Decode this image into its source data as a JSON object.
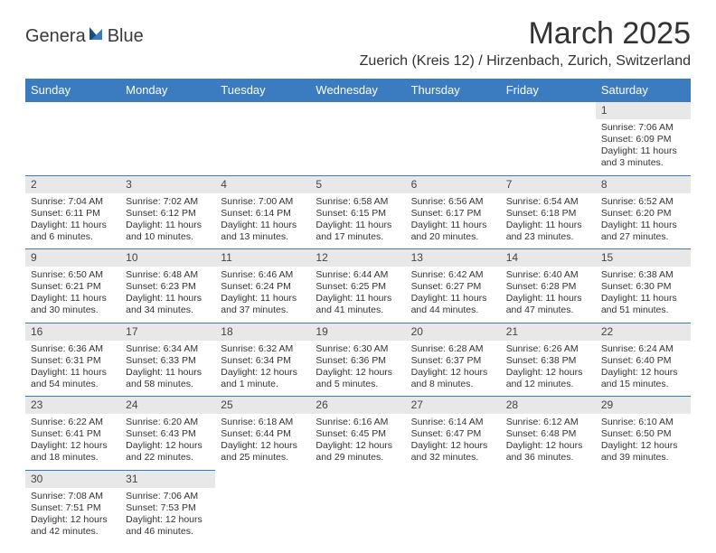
{
  "logo": {
    "text1": "Genera",
    "text2": "Blue",
    "color_dark": "#1a4e7a",
    "color_light": "#3b7bbf"
  },
  "title": "March 2025",
  "location": "Zuerich (Kreis 12) / Hirzenbach, Zurich, Switzerland",
  "header_bg": "#3b7bbf",
  "header_text_color": "#ffffff",
  "daynum_bg": "#e8e8e8",
  "border_color": "#3b7bbf",
  "weekdays": [
    "Sunday",
    "Monday",
    "Tuesday",
    "Wednesday",
    "Thursday",
    "Friday",
    "Saturday"
  ],
  "weeks": [
    [
      null,
      null,
      null,
      null,
      null,
      null,
      {
        "n": "1",
        "sr": "Sunrise: 7:06 AM",
        "ss": "Sunset: 6:09 PM",
        "dl": "Daylight: 11 hours and 3 minutes."
      }
    ],
    [
      {
        "n": "2",
        "sr": "Sunrise: 7:04 AM",
        "ss": "Sunset: 6:11 PM",
        "dl": "Daylight: 11 hours and 6 minutes."
      },
      {
        "n": "3",
        "sr": "Sunrise: 7:02 AM",
        "ss": "Sunset: 6:12 PM",
        "dl": "Daylight: 11 hours and 10 minutes."
      },
      {
        "n": "4",
        "sr": "Sunrise: 7:00 AM",
        "ss": "Sunset: 6:14 PM",
        "dl": "Daylight: 11 hours and 13 minutes."
      },
      {
        "n": "5",
        "sr": "Sunrise: 6:58 AM",
        "ss": "Sunset: 6:15 PM",
        "dl": "Daylight: 11 hours and 17 minutes."
      },
      {
        "n": "6",
        "sr": "Sunrise: 6:56 AM",
        "ss": "Sunset: 6:17 PM",
        "dl": "Daylight: 11 hours and 20 minutes."
      },
      {
        "n": "7",
        "sr": "Sunrise: 6:54 AM",
        "ss": "Sunset: 6:18 PM",
        "dl": "Daylight: 11 hours and 23 minutes."
      },
      {
        "n": "8",
        "sr": "Sunrise: 6:52 AM",
        "ss": "Sunset: 6:20 PM",
        "dl": "Daylight: 11 hours and 27 minutes."
      }
    ],
    [
      {
        "n": "9",
        "sr": "Sunrise: 6:50 AM",
        "ss": "Sunset: 6:21 PM",
        "dl": "Daylight: 11 hours and 30 minutes."
      },
      {
        "n": "10",
        "sr": "Sunrise: 6:48 AM",
        "ss": "Sunset: 6:23 PM",
        "dl": "Daylight: 11 hours and 34 minutes."
      },
      {
        "n": "11",
        "sr": "Sunrise: 6:46 AM",
        "ss": "Sunset: 6:24 PM",
        "dl": "Daylight: 11 hours and 37 minutes."
      },
      {
        "n": "12",
        "sr": "Sunrise: 6:44 AM",
        "ss": "Sunset: 6:25 PM",
        "dl": "Daylight: 11 hours and 41 minutes."
      },
      {
        "n": "13",
        "sr": "Sunrise: 6:42 AM",
        "ss": "Sunset: 6:27 PM",
        "dl": "Daylight: 11 hours and 44 minutes."
      },
      {
        "n": "14",
        "sr": "Sunrise: 6:40 AM",
        "ss": "Sunset: 6:28 PM",
        "dl": "Daylight: 11 hours and 47 minutes."
      },
      {
        "n": "15",
        "sr": "Sunrise: 6:38 AM",
        "ss": "Sunset: 6:30 PM",
        "dl": "Daylight: 11 hours and 51 minutes."
      }
    ],
    [
      {
        "n": "16",
        "sr": "Sunrise: 6:36 AM",
        "ss": "Sunset: 6:31 PM",
        "dl": "Daylight: 11 hours and 54 minutes."
      },
      {
        "n": "17",
        "sr": "Sunrise: 6:34 AM",
        "ss": "Sunset: 6:33 PM",
        "dl": "Daylight: 11 hours and 58 minutes."
      },
      {
        "n": "18",
        "sr": "Sunrise: 6:32 AM",
        "ss": "Sunset: 6:34 PM",
        "dl": "Daylight: 12 hours and 1 minute."
      },
      {
        "n": "19",
        "sr": "Sunrise: 6:30 AM",
        "ss": "Sunset: 6:36 PM",
        "dl": "Daylight: 12 hours and 5 minutes."
      },
      {
        "n": "20",
        "sr": "Sunrise: 6:28 AM",
        "ss": "Sunset: 6:37 PM",
        "dl": "Daylight: 12 hours and 8 minutes."
      },
      {
        "n": "21",
        "sr": "Sunrise: 6:26 AM",
        "ss": "Sunset: 6:38 PM",
        "dl": "Daylight: 12 hours and 12 minutes."
      },
      {
        "n": "22",
        "sr": "Sunrise: 6:24 AM",
        "ss": "Sunset: 6:40 PM",
        "dl": "Daylight: 12 hours and 15 minutes."
      }
    ],
    [
      {
        "n": "23",
        "sr": "Sunrise: 6:22 AM",
        "ss": "Sunset: 6:41 PM",
        "dl": "Daylight: 12 hours and 18 minutes."
      },
      {
        "n": "24",
        "sr": "Sunrise: 6:20 AM",
        "ss": "Sunset: 6:43 PM",
        "dl": "Daylight: 12 hours and 22 minutes."
      },
      {
        "n": "25",
        "sr": "Sunrise: 6:18 AM",
        "ss": "Sunset: 6:44 PM",
        "dl": "Daylight: 12 hours and 25 minutes."
      },
      {
        "n": "26",
        "sr": "Sunrise: 6:16 AM",
        "ss": "Sunset: 6:45 PM",
        "dl": "Daylight: 12 hours and 29 minutes."
      },
      {
        "n": "27",
        "sr": "Sunrise: 6:14 AM",
        "ss": "Sunset: 6:47 PM",
        "dl": "Daylight: 12 hours and 32 minutes."
      },
      {
        "n": "28",
        "sr": "Sunrise: 6:12 AM",
        "ss": "Sunset: 6:48 PM",
        "dl": "Daylight: 12 hours and 36 minutes."
      },
      {
        "n": "29",
        "sr": "Sunrise: 6:10 AM",
        "ss": "Sunset: 6:50 PM",
        "dl": "Daylight: 12 hours and 39 minutes."
      }
    ],
    [
      {
        "n": "30",
        "sr": "Sunrise: 7:08 AM",
        "ss": "Sunset: 7:51 PM",
        "dl": "Daylight: 12 hours and 42 minutes."
      },
      {
        "n": "31",
        "sr": "Sunrise: 7:06 AM",
        "ss": "Sunset: 7:53 PM",
        "dl": "Daylight: 12 hours and 46 minutes."
      },
      null,
      null,
      null,
      null,
      null
    ]
  ]
}
